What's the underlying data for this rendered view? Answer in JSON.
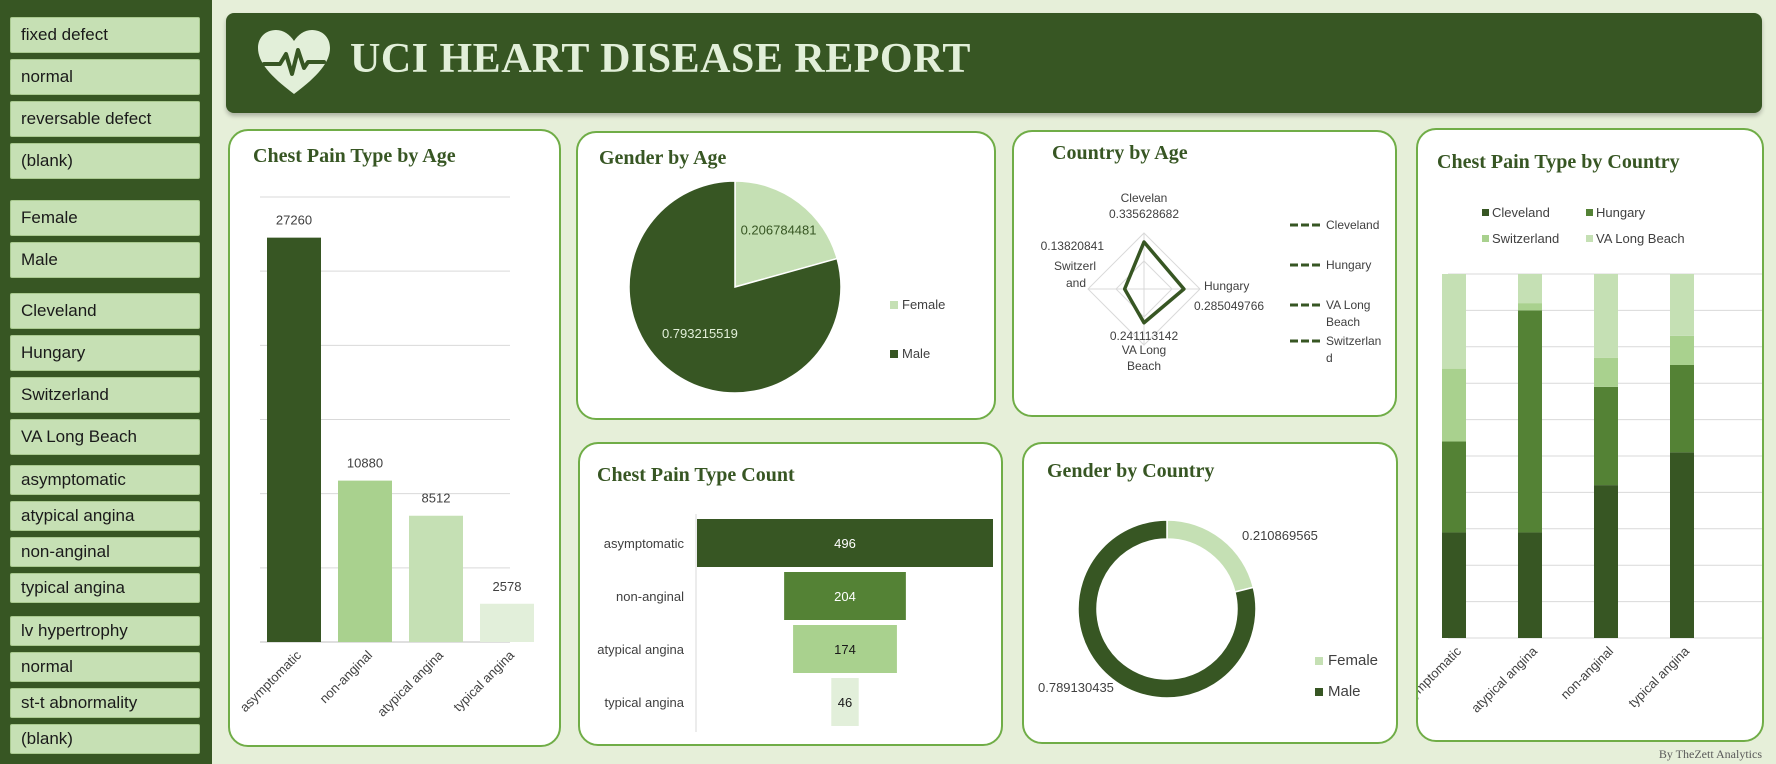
{
  "banner": {
    "title": "UCI HEART DISEASE REPORT",
    "logo_icon": "heart-pulse-icon"
  },
  "sidebar": {
    "slicers": [
      {
        "items": [
          "fixed defect",
          "normal",
          "reversable defect",
          "(blank)"
        ]
      },
      {
        "items": [
          "Female",
          "Male"
        ]
      },
      {
        "items": [
          "Cleveland",
          "Hungary",
          "Switzerland",
          "VA Long Beach"
        ]
      },
      {
        "items": [
          "asymptomatic",
          "atypical angina",
          "non-anginal",
          "typical angina"
        ]
      },
      {
        "items": [
          "lv hypertrophy",
          "normal",
          "st-t abnormality",
          "(blank)"
        ]
      }
    ]
  },
  "colors": {
    "dark": "#375623",
    "mid": "#548235",
    "light": "#a9d18e",
    "lighter": "#c5e0b4",
    "lightest": "#e2efda",
    "frame": "#70ad47"
  },
  "credit": "By TheZett Analytics",
  "chart_data": [
    {
      "id": "chest-pain-by-age",
      "type": "bar",
      "title": "Chest Pain Type by Age",
      "categories": [
        "asymptomatic",
        "non-anginal",
        "atypical angina",
        "typical angina"
      ],
      "values": [
        27260,
        10880,
        8512,
        2578
      ],
      "ylim": [
        0,
        30000
      ],
      "grid": true
    },
    {
      "id": "gender-by-age",
      "type": "pie",
      "title": "Gender by Age",
      "labels": [
        "Female",
        "Male"
      ],
      "values": [
        0.206784481,
        0.793215519
      ],
      "legend": "right"
    },
    {
      "id": "country-by-age",
      "type": "radar",
      "title": "Country by Age",
      "axes": [
        "Clevelan",
        "Hungary",
        "VA Long Beach",
        "Switzerl and"
      ],
      "values": [
        0.335628682,
        0.285049766,
        0.241113142,
        0.13820841
      ],
      "legend_entries": [
        "Cleveland",
        "Hungary",
        "VA Long Beach",
        "Switzerlan d"
      ],
      "legend": "right"
    },
    {
      "id": "chest-pain-count",
      "type": "funnel",
      "title": "Chest Pain Type Count",
      "categories": [
        "asymptomatic",
        "non-anginal",
        "atypical angina",
        "typical angina"
      ],
      "values": [
        496,
        204,
        174,
        46
      ]
    },
    {
      "id": "gender-by-country",
      "type": "donut",
      "title": "Gender by Country",
      "labels": [
        "Female",
        "Male"
      ],
      "values": [
        0.210869565,
        0.789130435
      ],
      "legend": "bottom-right"
    },
    {
      "id": "chest-pain-by-country",
      "type": "stacked_bar_100",
      "title": "Chest Pain Type by Country",
      "categories": [
        "asymptomatic",
        "atypical angina",
        "non-anginal",
        "typical angina"
      ],
      "series": [
        {
          "name": "Cleveland",
          "values": [
            0.29,
            0.29,
            0.42,
            0.51
          ]
        },
        {
          "name": "Hungary",
          "values": [
            0.25,
            0.61,
            0.27,
            0.24
          ]
        },
        {
          "name": "Switzerland",
          "values": [
            0.2,
            0.02,
            0.08,
            0.08
          ]
        },
        {
          "name": "VA Long Beach",
          "values": [
            0.26,
            0.08,
            0.23,
            0.17
          ]
        }
      ],
      "ylim": [
        0,
        1
      ],
      "legend": "top"
    }
  ]
}
